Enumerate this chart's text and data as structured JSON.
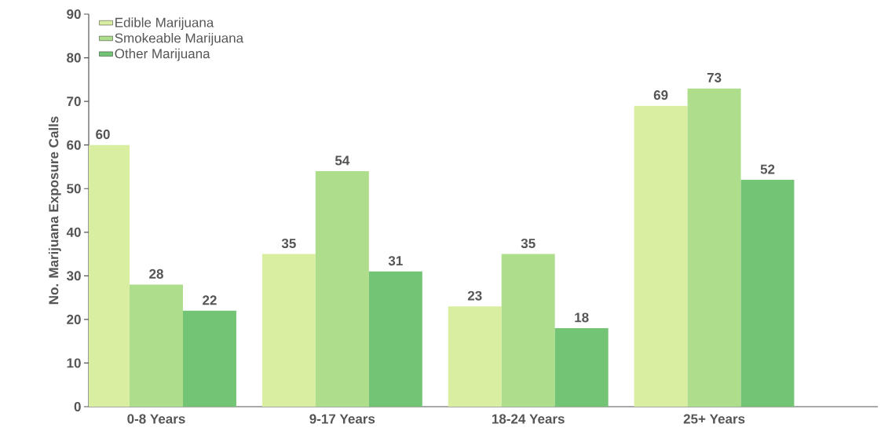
{
  "chart_data": {
    "type": "bar",
    "ylabel": "No. Marijuana Exposure Calls",
    "categories": [
      "0-8 Years",
      "9-17 Years",
      "18-24 Years",
      "25+ Years"
    ],
    "series": [
      {
        "name": "Edible Marijuana",
        "color": "#d9eea0",
        "values": [
          60,
          35,
          23,
          69
        ]
      },
      {
        "name": "Smokeable Marijuana",
        "color": "#aedd8c",
        "values": [
          28,
          54,
          35,
          73
        ]
      },
      {
        "name": "Other Marijuana",
        "color": "#74c476",
        "values": [
          22,
          31,
          18,
          52
        ]
      }
    ],
    "ylim": [
      0,
      90
    ],
    "yticks": [
      0,
      10,
      20,
      30,
      40,
      50,
      60,
      70,
      80,
      90
    ],
    "data_labels": true,
    "legend": "top left",
    "grid": false
  }
}
